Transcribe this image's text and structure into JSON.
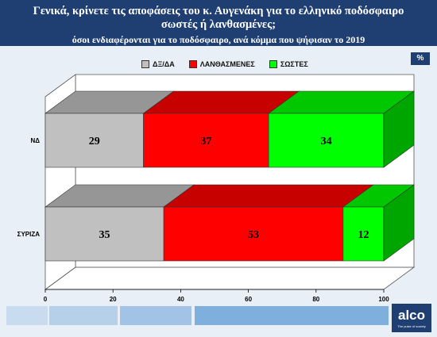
{
  "header": {
    "title": "Γενικά, κρίνετε τις αποφάσεις του κ. Αυγενάκη για το ελληνικό ποδόσφαιρο σωστές ή λανθασμένες;",
    "subtitle": "όσοι ενδιαφέρονται για το ποδόσφαιρο, ανά κόμμα που ψήφισαν το 2019"
  },
  "badge": "%",
  "logo": {
    "name": "alco",
    "tagline": "The pulse of society"
  },
  "colors": {
    "header_bg": "#1f3f73",
    "page_bg": "#e8eff6"
  },
  "chart_data": {
    "type": "bar",
    "orientation": "horizontal",
    "stacked": true,
    "three_d": true,
    "categories": [
      "ΝΔ",
      "ΣΥΡΙΖΑ"
    ],
    "series": [
      {
        "name": "ΔΞ/ΔΑ",
        "values": [
          29,
          35
        ],
        "color": "#c0c0c0"
      },
      {
        "name": "ΛΑΝΘΑΣΜΕΝΕΣ",
        "values": [
          37,
          53
        ],
        "color": "#ff0000"
      },
      {
        "name": "ΣΩΣΤΕΣ",
        "values": [
          34,
          12
        ],
        "color": "#00ff00"
      }
    ],
    "xlim": [
      0,
      100
    ],
    "xticks": [
      0,
      20,
      40,
      60,
      80,
      100
    ],
    "legend": "top-center",
    "grid": false
  }
}
